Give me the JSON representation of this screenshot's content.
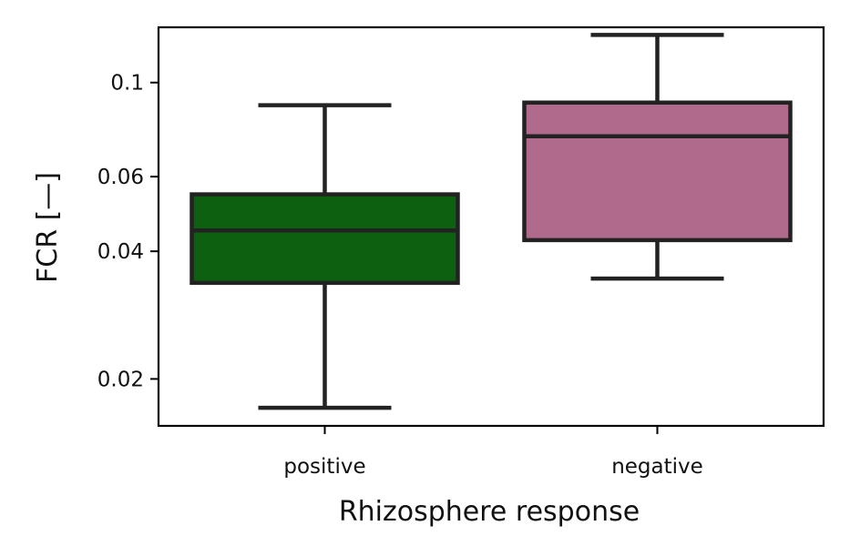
{
  "chart_data": {
    "type": "box",
    "xlabel": "Rhizosphere response",
    "ylabel": "FCR [—]",
    "yscale": "log",
    "ylim": [
      0.0155,
      0.135
    ],
    "yticks": [
      {
        "value": 0.1,
        "label": "0.1"
      },
      {
        "value": 0.06,
        "label": "0.06"
      },
      {
        "value": 0.04,
        "label": "0.04"
      },
      {
        "value": 0.02,
        "label": "0.02"
      }
    ],
    "categories": [
      "positive",
      "negative"
    ],
    "boxes": [
      {
        "category": "positive",
        "whisker_low": 0.0171,
        "q1": 0.0337,
        "median": 0.0448,
        "q3": 0.0545,
        "whisker_high": 0.0884,
        "color": "#0d6010"
      },
      {
        "category": "negative",
        "whisker_low": 0.0345,
        "q1": 0.0425,
        "median": 0.0747,
        "q3": 0.0897,
        "whisker_high": 0.1295,
        "color": "#b06a8c"
      }
    ],
    "grid": false,
    "legend": "none"
  }
}
